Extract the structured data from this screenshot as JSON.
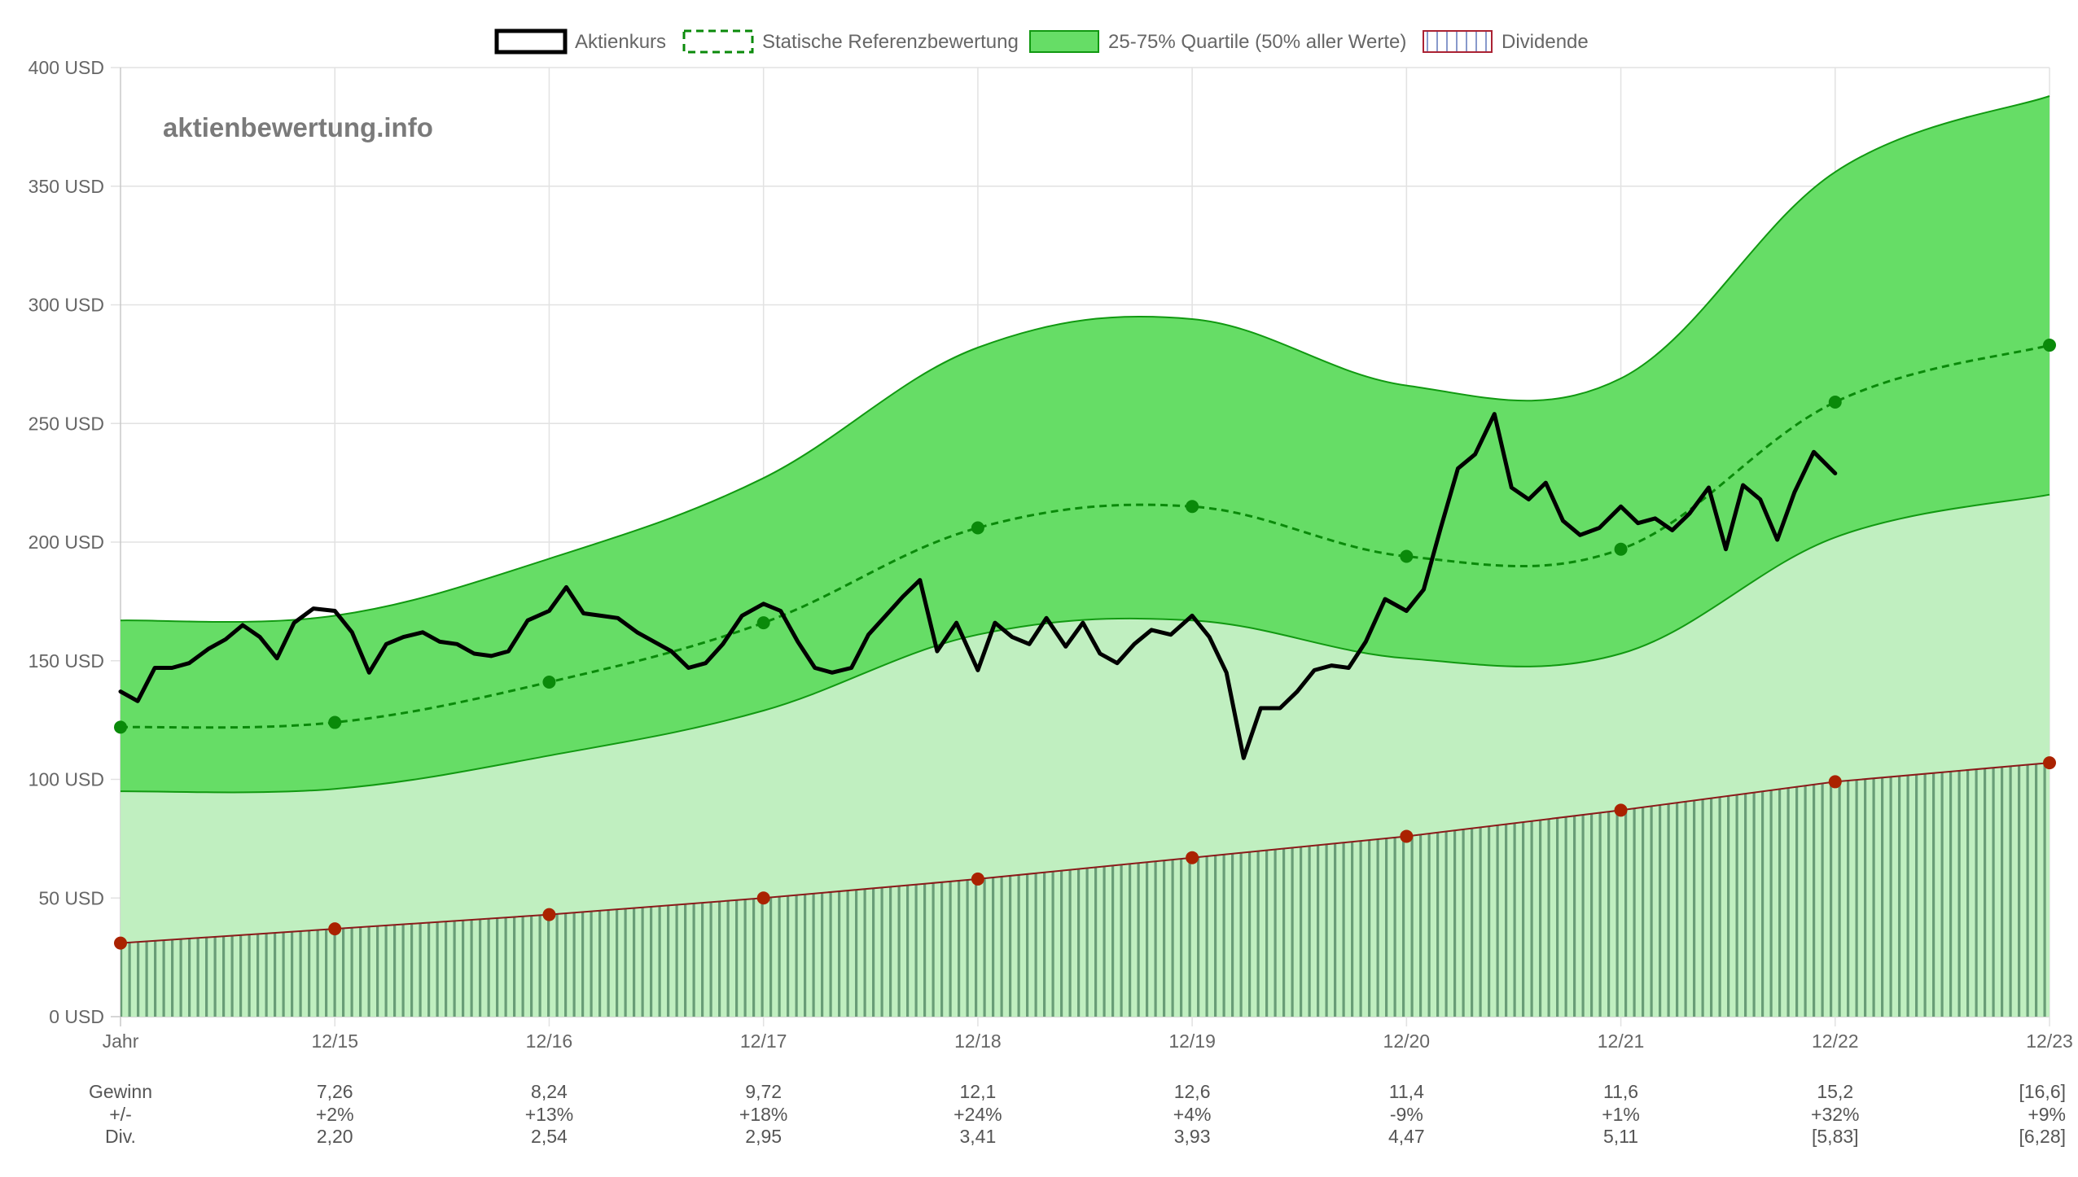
{
  "watermark": "aktienbewertung.info",
  "colors": {
    "price": "#000000",
    "reference": "#0a8a0a",
    "quartile_outer": "#66dd66",
    "quartile_inner": "#c0efc0",
    "quartile_edge": "#119911",
    "dividend_line": "#8b1a1a",
    "dividend_marker": "#aa2200",
    "dividend_hatch": "#5a8f6a",
    "grid": "#e2e2e2"
  },
  "legend": [
    {
      "label": "Aktienkurs",
      "style": "solid-black-outline"
    },
    {
      "label": "Statische Referenzbewertung",
      "style": "dashed-green-outline"
    },
    {
      "label": "25-75% Quartile (50% aller Werte)",
      "style": "green-fill"
    },
    {
      "label": "Dividende",
      "style": "hatched-red-outline"
    }
  ],
  "chart_data": {
    "type": "line",
    "y_unit": "USD",
    "ylim": [
      0,
      400
    ],
    "y_ticks": [
      "0 USD",
      "50 USD",
      "100 USD",
      "150 USD",
      "200 USD",
      "250 USD",
      "300 USD",
      "350 USD",
      "400 USD"
    ],
    "x_labels": [
      "Jahr",
      "12/15",
      "12/16",
      "12/17",
      "12/18",
      "12/19",
      "12/20",
      "12/21",
      "12/22",
      "12/23"
    ],
    "grid": true,
    "legend_position": "top-center",
    "series": [
      {
        "name": "Aktienkurs",
        "x": [
          0.0,
          0.08,
          0.16,
          0.24,
          0.32,
          0.41,
          0.49,
          0.57,
          0.65,
          0.73,
          0.81,
          0.9,
          1.0,
          1.08,
          1.16,
          1.24,
          1.32,
          1.41,
          1.49,
          1.57,
          1.65,
          1.73,
          1.81,
          1.9,
          2.0,
          2.08,
          2.16,
          2.24,
          2.32,
          2.41,
          2.49,
          2.57,
          2.65,
          2.73,
          2.81,
          2.9,
          3.0,
          3.08,
          3.16,
          3.24,
          3.32,
          3.41,
          3.49,
          3.57,
          3.65,
          3.73,
          3.81,
          3.9,
          4.0,
          4.08,
          4.16,
          4.24,
          4.32,
          4.41,
          4.49,
          4.57,
          4.65,
          4.73,
          4.81,
          4.9,
          5.0,
          5.08,
          5.16,
          5.24,
          5.32,
          5.41,
          5.49,
          5.57,
          5.65,
          5.73,
          5.81,
          5.9,
          6.0,
          6.08,
          6.16,
          6.24,
          6.32,
          6.41,
          6.49,
          6.57,
          6.65,
          6.73,
          6.81,
          6.9,
          7.0,
          7.08,
          7.16,
          7.24,
          7.32,
          7.41,
          7.49,
          7.57,
          7.65,
          7.73,
          7.81,
          7.9,
          8.0
        ],
        "values": [
          137,
          133,
          147,
          147,
          149,
          155,
          159,
          165,
          160,
          151,
          166,
          172,
          171,
          162,
          145,
          157,
          160,
          162,
          158,
          157,
          153,
          152,
          154,
          167,
          171,
          181,
          170,
          169,
          168,
          162,
          158,
          154,
          147,
          149,
          157,
          169,
          174,
          171,
          158,
          147,
          145,
          147,
          161,
          169,
          177,
          184,
          154,
          166,
          146,
          166,
          160,
          157,
          168,
          156,
          166,
          153,
          149,
          157,
          163,
          161,
          169,
          160,
          145,
          109,
          130,
          130,
          137,
          146,
          148,
          147,
          158,
          176,
          171,
          180,
          206,
          231,
          237,
          254,
          223,
          218,
          225,
          209,
          203,
          206,
          215,
          208,
          210,
          205,
          212,
          223,
          197,
          224,
          218,
          201,
          221,
          238,
          229
        ]
      },
      {
        "name": "Statische Referenzbewertung",
        "x": [
          0,
          1,
          2,
          3,
          4,
          5,
          6,
          7,
          8,
          9
        ],
        "values": [
          122,
          124,
          141,
          166,
          206,
          215,
          194,
          197,
          259,
          283
        ]
      },
      {
        "name": "25-75% Quartile (50% aller Werte)",
        "x": [
          0,
          1,
          2,
          3,
          4,
          5,
          6,
          7,
          8,
          9
        ],
        "upper": [
          167,
          169,
          193,
          227,
          282,
          294,
          266,
          269,
          356,
          388
        ],
        "lower": [
          95,
          96,
          110,
          129,
          161,
          167,
          151,
          153,
          202,
          220
        ]
      },
      {
        "name": "Dividende",
        "x": [
          0,
          1,
          2,
          3,
          4,
          5,
          6,
          7,
          8,
          9
        ],
        "values": [
          31,
          37,
          43,
          50,
          58,
          67,
          76,
          87,
          99,
          107
        ]
      }
    ],
    "table": [
      {
        "label": "Gewinn",
        "values": [
          "",
          "7,26",
          "8,24",
          "9,72",
          "12,1",
          "12,6",
          "11,4",
          "11,6",
          "15,2",
          "[16,6]"
        ]
      },
      {
        "label": "+/-",
        "values": [
          "",
          "+2%",
          "+13%",
          "+18%",
          "+24%",
          "+4%",
          "-9%",
          "+1%",
          "+32%",
          "+9%"
        ]
      },
      {
        "label": "Div.",
        "values": [
          "",
          "2,20",
          "2,54",
          "2,95",
          "3,41",
          "3,93",
          "4,47",
          "5,11",
          "[5,83]",
          "[6,28]"
        ]
      }
    ]
  }
}
